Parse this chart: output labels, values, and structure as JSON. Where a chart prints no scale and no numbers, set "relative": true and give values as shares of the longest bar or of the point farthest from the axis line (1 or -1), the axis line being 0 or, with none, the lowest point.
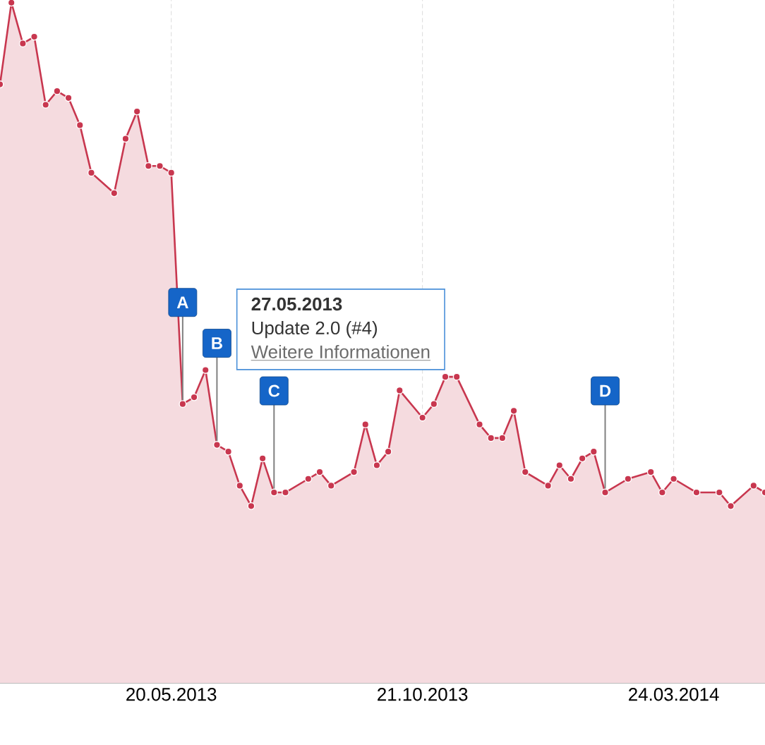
{
  "chart_data": {
    "type": "area",
    "relative": true,
    "color": "#c8374f",
    "marker": "circle",
    "grid": "x",
    "tick_labels": "x",
    "x": [
      "2013-02-04",
      "2013-02-11",
      "2013-02-18",
      "2013-02-25",
      "2013-03-04",
      "2013-03-11",
      "2013-03-18",
      "2013-03-25",
      "2013-04-01",
      "2013-04-15",
      "2013-04-22",
      "2013-04-29",
      "2013-05-06",
      "2013-05-13",
      "2013-05-20",
      "2013-05-27",
      "2013-06-03",
      "2013-06-10",
      "2013-06-17",
      "2013-06-24",
      "2013-07-01",
      "2013-07-08",
      "2013-07-15",
      "2013-07-22",
      "2013-07-29",
      "2013-08-12",
      "2013-08-19",
      "2013-08-26",
      "2013-09-09",
      "2013-09-16",
      "2013-09-23",
      "2013-09-30",
      "2013-10-07",
      "2013-10-21",
      "2013-10-28",
      "2013-11-04",
      "2013-11-11",
      "2013-11-25",
      "2013-12-02",
      "2013-12-09",
      "2013-12-16",
      "2013-12-23",
      "2014-01-06",
      "2014-01-13",
      "2014-01-20",
      "2014-01-27",
      "2014-02-03",
      "2014-02-10",
      "2014-02-24",
      "2014-03-10",
      "2014-03-17",
      "2014-03-24",
      "2014-04-07",
      "2014-04-21",
      "2014-04-28",
      "2014-05-12",
      "2014-05-19"
    ],
    "values": [
      0.88,
      1,
      0.94,
      0.95,
      0.85,
      0.87,
      0.86,
      0.82,
      0.75,
      0.72,
      0.8,
      0.84,
      0.76,
      0.76,
      0.75,
      0.41,
      0.42,
      0.46,
      0.35,
      0.34,
      0.29,
      0.26,
      0.33,
      0.28,
      0.28,
      0.3,
      0.31,
      0.29,
      0.31,
      0.38,
      0.32,
      0.34,
      0.43,
      0.39,
      0.41,
      0.45,
      0.45,
      0.38,
      0.36,
      0.36,
      0.4,
      0.31,
      0.29,
      0.32,
      0.3,
      0.33,
      0.34,
      0.28,
      0.3,
      0.31,
      0.28,
      0.3,
      0.28,
      0.28,
      0.26,
      0.29,
      0.28
    ],
    "xlim": [
      "2013-02-04",
      "2014-05-19"
    ],
    "xticks": [
      {
        "value": "2013-05-20",
        "label": "20.05.2013"
      },
      {
        "value": "2013-10-21",
        "label": "21.10.2013"
      },
      {
        "value": "2014-03-24",
        "label": "24.03.2014"
      }
    ],
    "annotations": [
      {
        "text": "A",
        "x": "2013-05-27",
        "y": 0.41
      },
      {
        "text": "B",
        "x": "2013-06-17",
        "y": 0.35
      },
      {
        "text": "C",
        "x": "2013-07-22",
        "y": 0.28
      },
      {
        "text": "D",
        "x": "2014-02-10",
        "y": 0.28
      },
      "27.05.2013",
      "Update 2.0 (#4)",
      "Weitere Informationen"
    ]
  }
}
